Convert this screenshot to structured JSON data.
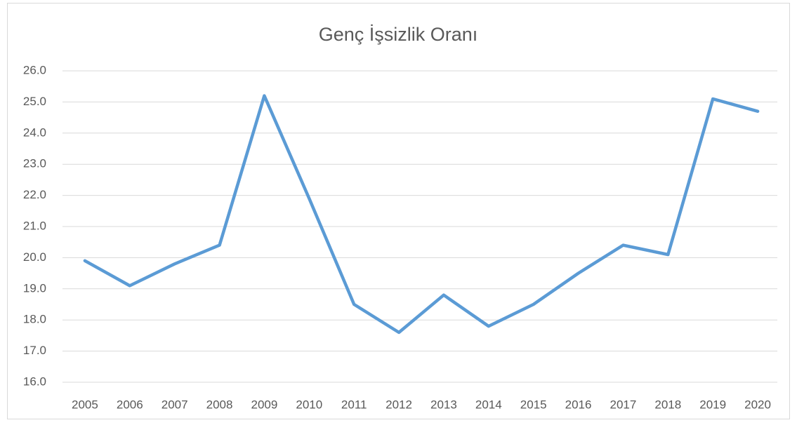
{
  "chart_data": {
    "type": "line",
    "title": "Genç İşsizlik Oranı",
    "categories": [
      "2005",
      "2006",
      "2007",
      "2008",
      "2009",
      "2010",
      "2011",
      "2012",
      "2013",
      "2014",
      "2015",
      "2016",
      "2017",
      "2018",
      "2019",
      "2020"
    ],
    "values": [
      19.9,
      19.1,
      19.8,
      20.4,
      25.2,
      21.9,
      18.5,
      17.6,
      18.8,
      17.8,
      18.5,
      19.5,
      20.4,
      20.1,
      25.1,
      24.7
    ],
    "color": "#5b9bd5",
    "ylim": [
      16,
      26
    ],
    "yticks": [
      {
        "value": 16,
        "label": "16.0"
      },
      {
        "value": 17,
        "label": "17.0"
      },
      {
        "value": 18,
        "label": "18.0"
      },
      {
        "value": 19,
        "label": "19.0"
      },
      {
        "value": 20,
        "label": "20.0"
      },
      {
        "value": 21,
        "label": "21.0"
      },
      {
        "value": 22,
        "label": "22.0"
      },
      {
        "value": 23,
        "label": "23.0"
      },
      {
        "value": 24,
        "label": "24.0"
      },
      {
        "value": 25,
        "label": "25.0"
      },
      {
        "value": 26,
        "label": "26.0"
      }
    ],
    "grid": true
  }
}
